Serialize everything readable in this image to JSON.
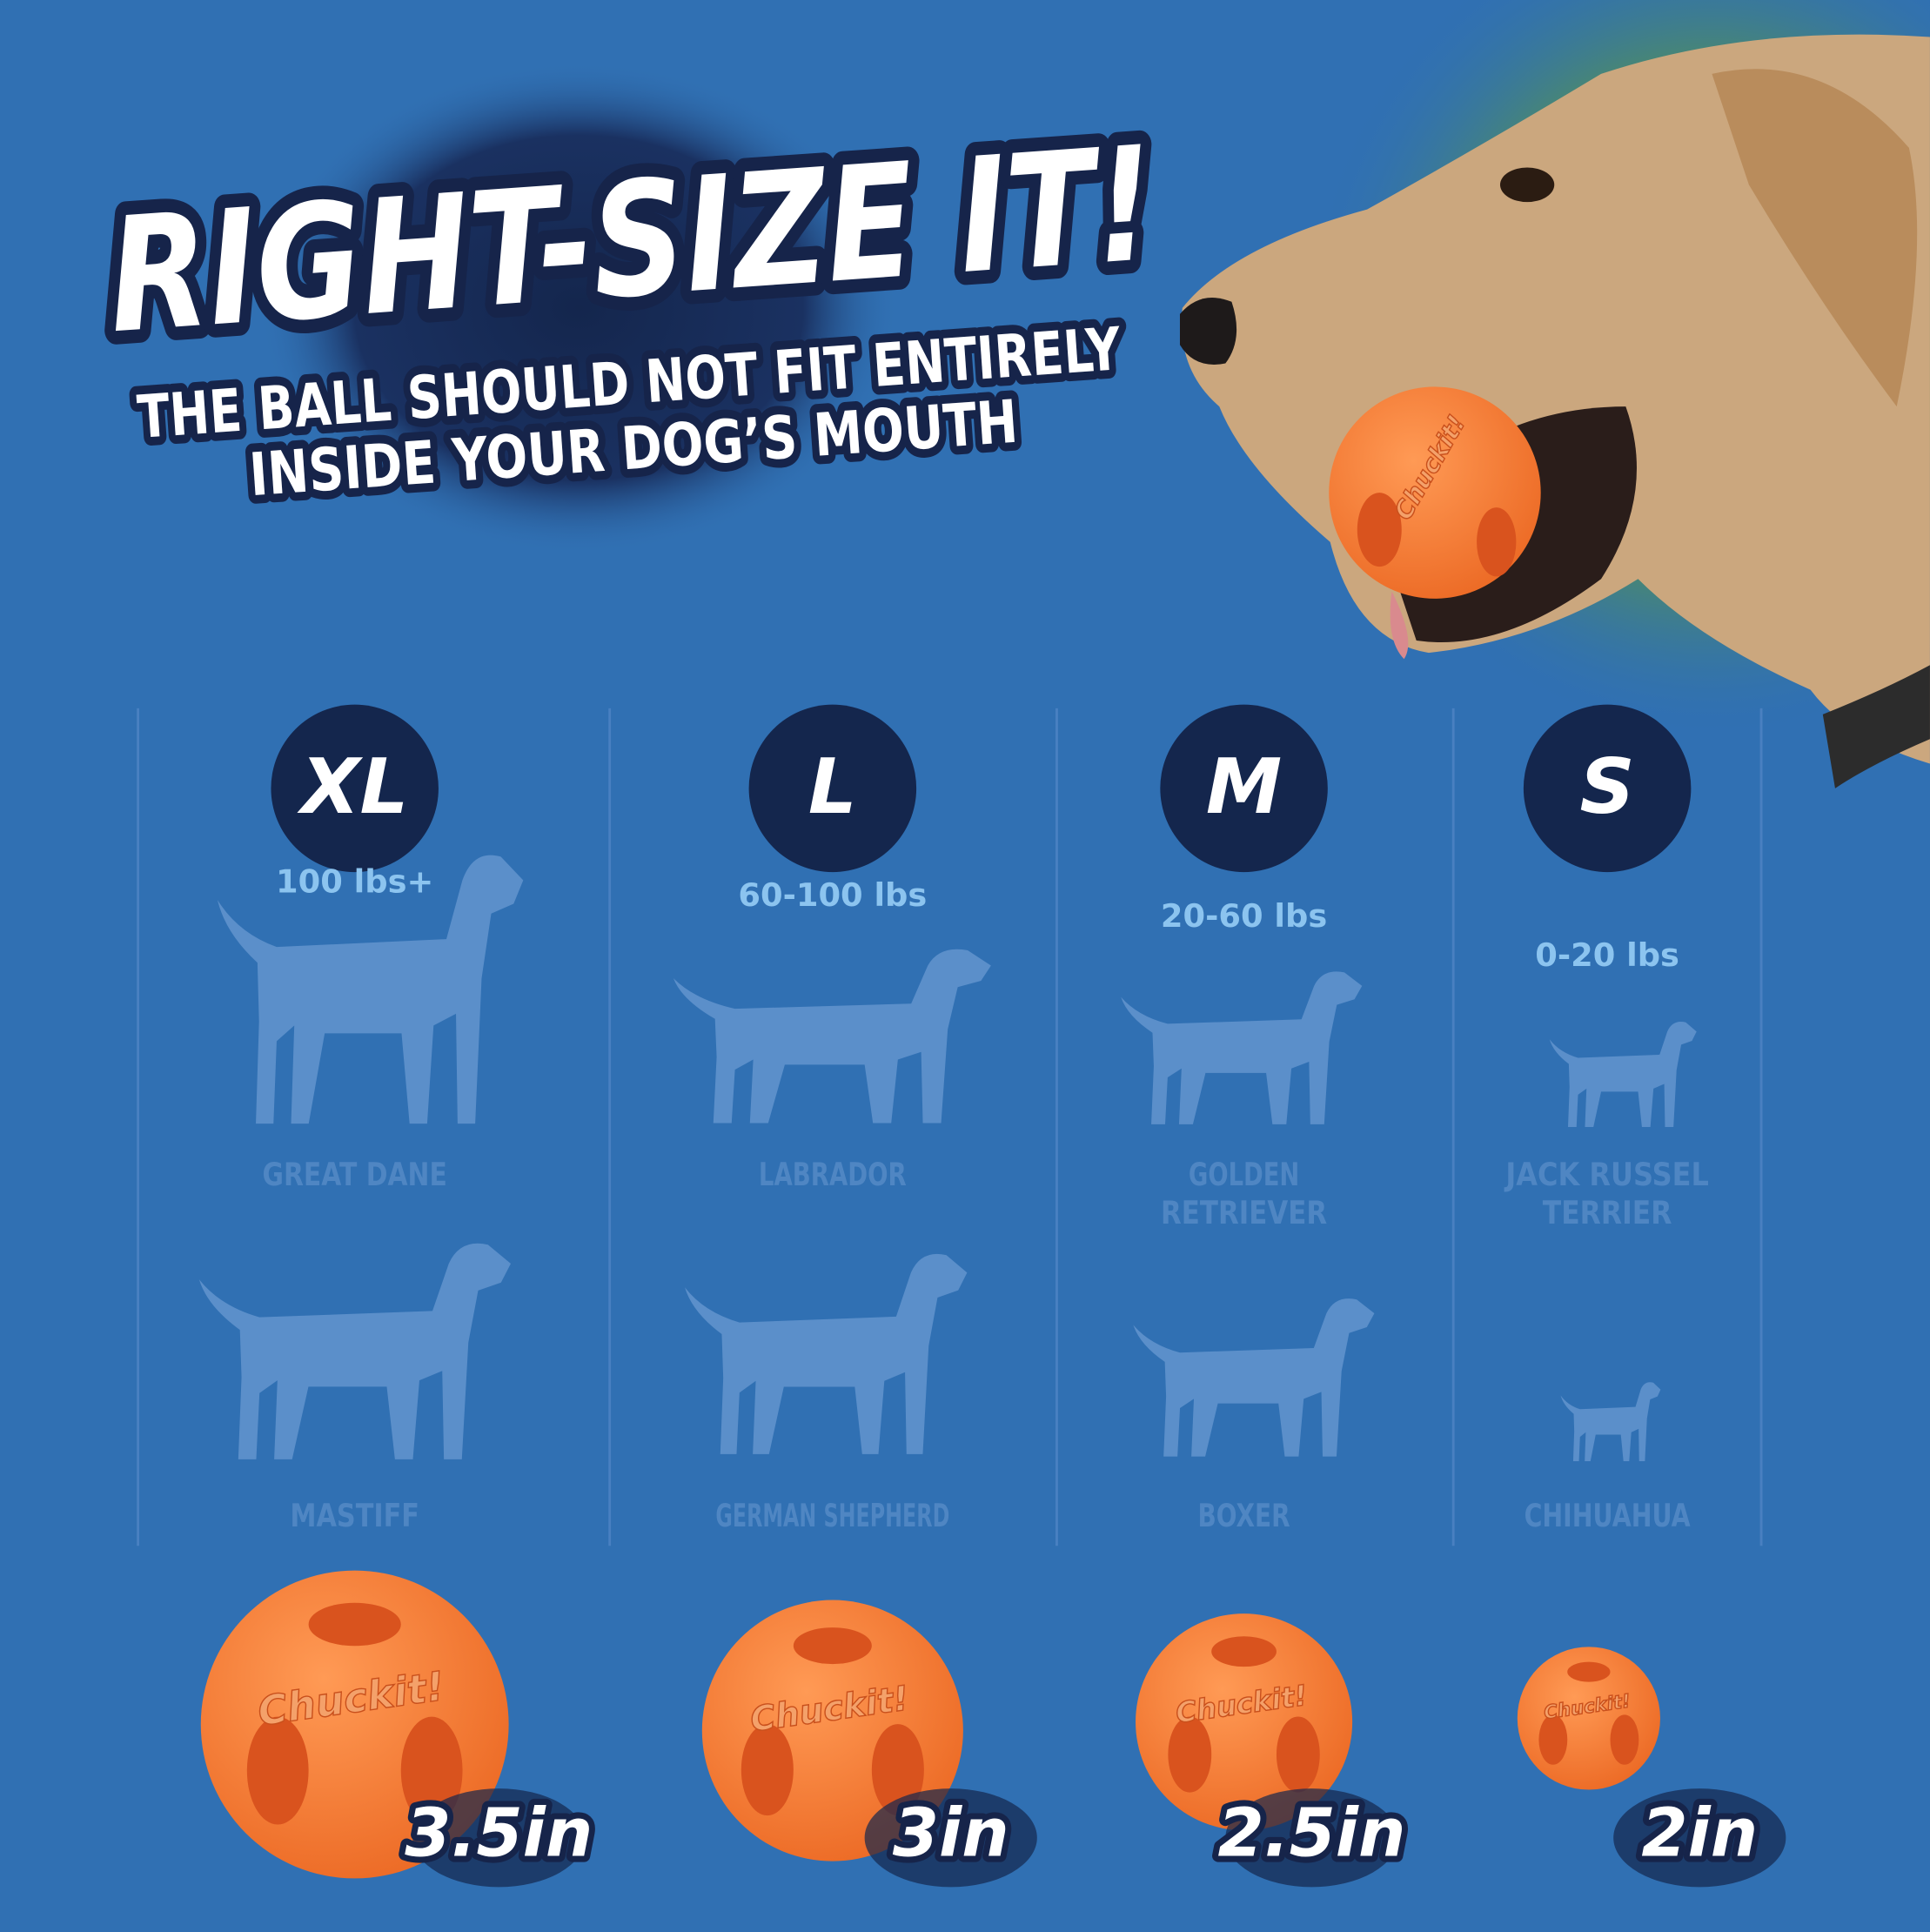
{
  "title": "RIGHT-SIZE IT!",
  "subtitle": [
    "THE BALL SHOULD NOT FIT ENTIRELY",
    "INSIDE YOUR DOG’S MOUTH"
  ],
  "brand": "Chuckit!",
  "columns": [
    {
      "size": "XL",
      "weight": "100 lbs+",
      "breeds": [
        [
          "GREAT DANE"
        ],
        [
          "MASTIFF"
        ]
      ],
      "ball": "3.5in"
    },
    {
      "size": "L",
      "weight": "60-100 lbs",
      "breeds": [
        [
          "LABRADOR"
        ],
        [
          "GERMAN SHEPHERD"
        ]
      ],
      "ball": "3in"
    },
    {
      "size": "M",
      "weight": "20-60 lbs",
      "breeds": [
        [
          "GOLDEN",
          "RETRIEVER"
        ],
        [
          "BOXER"
        ]
      ],
      "ball": "2.5in"
    },
    {
      "size": "S",
      "weight": "0-20 lbs",
      "breeds": [
        [
          "JACK RUSSEL",
          "TERRIER"
        ],
        [
          "CHIHUAHUA"
        ]
      ],
      "ball": "2in"
    }
  ]
}
